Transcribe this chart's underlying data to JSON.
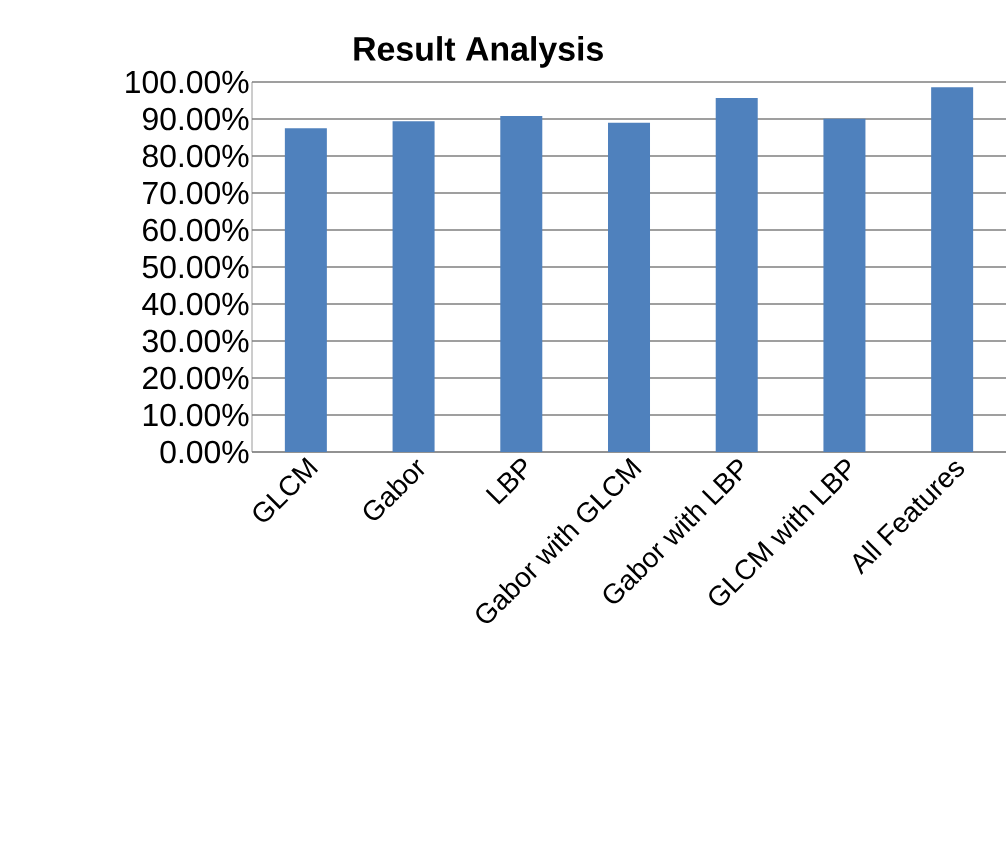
{
  "chart_data": {
    "type": "bar",
    "title": "Result Analysis",
    "categories": [
      "GLCM",
      "Gabor",
      "LBP",
      "Gabor with GLCM",
      "Gabor with LBP",
      "GLCM with LBP",
      "All Features"
    ],
    "values": [
      87.5,
      89.4,
      90.8,
      89.0,
      95.7,
      90.1,
      98.6
    ],
    "color": "#4f81bd",
    "ylim": [
      0,
      100
    ],
    "yticks": [
      {
        "value": 0,
        "label": "0.00%"
      },
      {
        "value": 10,
        "label": "10.00%"
      },
      {
        "value": 20,
        "label": "20.00%"
      },
      {
        "value": 30,
        "label": "30.00%"
      },
      {
        "value": 40,
        "label": "40.00%"
      },
      {
        "value": 50,
        "label": "50.00%"
      },
      {
        "value": 60,
        "label": "60.00%"
      },
      {
        "value": 70,
        "label": "70.00%"
      },
      {
        "value": 80,
        "label": "80.00%"
      },
      {
        "value": 90,
        "label": "90.00%"
      },
      {
        "value": 100,
        "label": "100.00%"
      }
    ],
    "grid": "y"
  }
}
